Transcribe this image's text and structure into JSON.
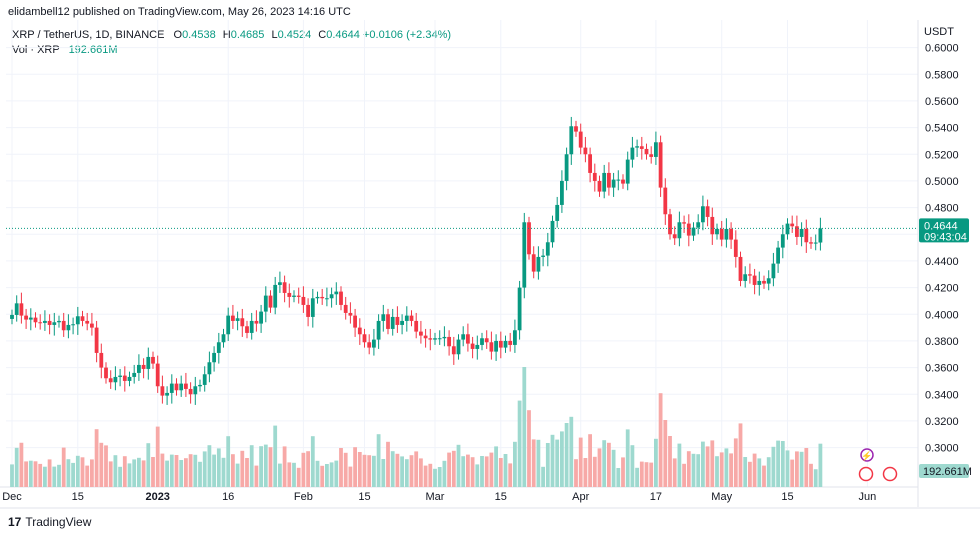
{
  "header": {
    "publish_line": "elidambell12 published on TradingView.com, May 26, 2023 14:16 UTC"
  },
  "legend": {
    "symbol": "XRP / TetherUS, 1D, BINANCE",
    "o_label": "O",
    "o_value": "0.4538",
    "h_label": "H",
    "h_value": "0.4685",
    "l_label": "L",
    "l_value": "0.4524",
    "c_label": "C",
    "c_value": "0.4644",
    "change": "+0.0106 (+2.34%)",
    "vol_label": "Vol · XRP",
    "vol_value": "192.661M"
  },
  "currency": "USDT",
  "footer": {
    "brand": "TradingView"
  },
  "colors": {
    "up": "#089981",
    "down": "#f23645",
    "vol_up": "#9ed9cf",
    "vol_down": "#f7a9a7",
    "grid": "#f0f3fa",
    "last_price_bg": "#089981"
  },
  "chart_data": {
    "type": "candlestick",
    "title": "XRP / TetherUS, 1D, BINANCE",
    "xlabel": "",
    "ylabel": "",
    "ylim": [
      0.29,
      0.6
    ],
    "y_ticks": [
      "0.6000",
      "0.5800",
      "0.5600",
      "0.5400",
      "0.5200",
      "0.5000",
      "0.4800",
      "0.4600",
      "0.4400",
      "0.4200",
      "0.4000",
      "0.3800",
      "0.3600",
      "0.3400",
      "0.3200",
      "0.3000"
    ],
    "x_ticks": [
      {
        "label": "Dec",
        "index": 0
      },
      {
        "label": "15",
        "index": 14
      },
      {
        "label": "2023",
        "index": 31
      },
      {
        "label": "16",
        "index": 46
      },
      {
        "label": "Feb",
        "index": 62
      },
      {
        "label": "15",
        "index": 75
      },
      {
        "label": "Mar",
        "index": 90
      },
      {
        "label": "15",
        "index": 104
      },
      {
        "label": "Apr",
        "index": 121
      },
      {
        "label": "17",
        "index": 137
      },
      {
        "label": "May",
        "index": 151
      },
      {
        "label": "15",
        "index": 165
      },
      {
        "label": "Jun",
        "index": 182
      }
    ],
    "last_price": "0.4644",
    "countdown": "09:43:04",
    "volume_last": "192.661M",
    "closes": [
      0.3995,
      0.4082,
      0.399,
      0.396,
      0.3975,
      0.394,
      0.3935,
      0.395,
      0.392,
      0.394,
      0.395,
      0.388,
      0.392,
      0.3925,
      0.3985,
      0.395,
      0.393,
      0.39,
      0.371,
      0.36,
      0.352,
      0.349,
      0.353,
      0.354,
      0.35,
      0.353,
      0.356,
      0.362,
      0.359,
      0.368,
      0.363,
      0.346,
      0.339,
      0.341,
      0.348,
      0.343,
      0.348,
      0.344,
      0.34,
      0.346,
      0.347,
      0.355,
      0.364,
      0.371,
      0.379,
      0.385,
      0.399,
      0.395,
      0.397,
      0.391,
      0.386,
      0.395,
      0.393,
      0.402,
      0.414,
      0.405,
      0.422,
      0.424,
      0.416,
      0.413,
      0.414,
      0.413,
      0.407,
      0.398,
      0.412,
      0.413,
      0.412,
      0.412,
      0.415,
      0.417,
      0.407,
      0.401,
      0.399,
      0.39,
      0.385,
      0.379,
      0.375,
      0.381,
      0.395,
      0.4,
      0.389,
      0.398,
      0.392,
      0.395,
      0.399,
      0.395,
      0.387,
      0.384,
      0.382,
      0.381,
      0.382,
      0.382,
      0.383,
      0.376,
      0.37,
      0.381,
      0.385,
      0.378,
      0.374,
      0.377,
      0.382,
      0.379,
      0.372,
      0.38,
      0.375,
      0.38,
      0.377,
      0.388,
      0.42,
      0.469,
      0.445,
      0.432,
      0.443,
      0.444,
      0.454,
      0.47,
      0.482,
      0.5,
      0.52,
      0.541,
      0.537,
      0.525,
      0.52,
      0.506,
      0.5,
      0.492,
      0.506,
      0.495,
      0.501,
      0.501,
      0.498,
      0.516,
      0.525,
      0.526,
      0.524,
      0.52,
      0.518,
      0.529,
      0.495,
      0.475,
      0.46,
      0.457,
      0.469,
      0.468,
      0.459,
      0.465,
      0.469,
      0.481,
      0.473,
      0.46,
      0.464,
      0.456,
      0.464,
      0.456,
      0.443,
      0.425,
      0.43,
      0.429,
      0.422,
      0.425,
      0.423,
      0.427,
      0.438,
      0.45,
      0.46,
      0.468,
      0.466,
      0.458,
      0.464,
      0.454,
      0.453,
      0.4538,
      0.4644
    ]
  }
}
